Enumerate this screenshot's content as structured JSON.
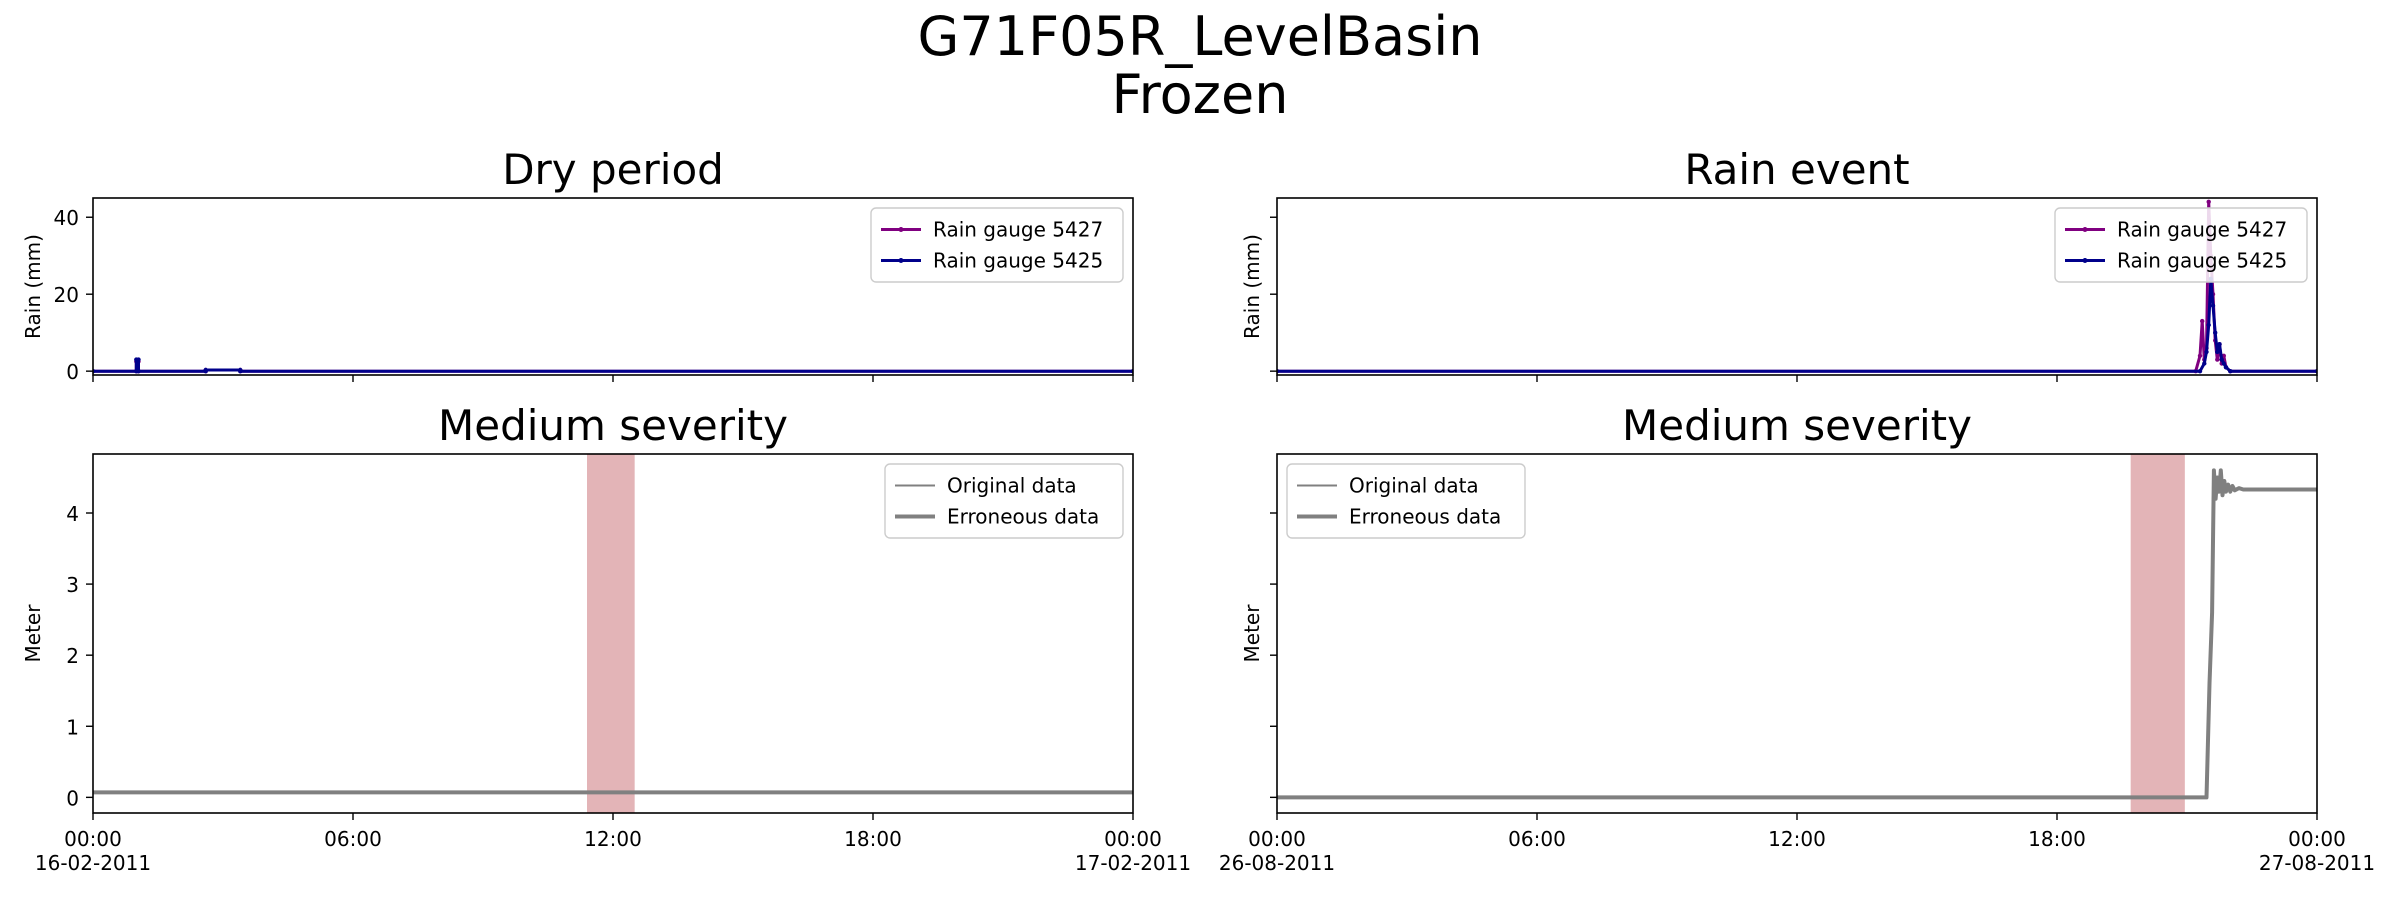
{
  "figure": {
    "title_line1": "G71F05R_LevelBasin",
    "title_line2": "Frozen"
  },
  "chart_data": [
    {
      "id": "rain_dry",
      "type": "line",
      "title": "Dry period",
      "ylabel": "Rain (mm)",
      "ylim": [
        -1,
        45
      ],
      "yticks": [
        0,
        20,
        40
      ],
      "show_ytick_labels": true,
      "xlim_hours": [
        0,
        24
      ],
      "xticks": [
        "00:00\n16-02-2011",
        "06:00",
        "12:00",
        "18:00",
        "00:00\n17-02-2011"
      ],
      "show_xtick_labels": false,
      "legend": "upper-right",
      "series": [
        {
          "name": "Rain gauge 5427",
          "color": "#800080",
          "marker": true,
          "x": [
            0,
            1.0,
            1.0,
            1.05,
            1.05,
            2.6,
            2.6,
            3.4,
            3.4,
            24
          ],
          "y": [
            0,
            0,
            2.5,
            2.5,
            0,
            0,
            0.3,
            0.3,
            0,
            0
          ]
        },
        {
          "name": "Rain gauge 5425",
          "color": "#00008b",
          "marker": true,
          "x": [
            0,
            1.0,
            1.0,
            1.05,
            1.05,
            2.6,
            2.6,
            3.4,
            3.4,
            24
          ],
          "y": [
            0,
            0,
            3.0,
            3.0,
            0,
            0,
            0.3,
            0.3,
            0,
            0
          ]
        }
      ]
    },
    {
      "id": "rain_event",
      "type": "line",
      "title": "Rain event",
      "ylabel": "Rain (mm)",
      "ylim": [
        -1,
        45
      ],
      "yticks": [
        0,
        20,
        40
      ],
      "show_ytick_labels": false,
      "xlim_hours": [
        0,
        24
      ],
      "xticks": [
        "00:00\n26-08-2011",
        "06:00",
        "12:00",
        "18:00",
        "00:00\n27-08-2011"
      ],
      "show_xtick_labels": false,
      "legend": "upper-right",
      "series": [
        {
          "name": "Rain gauge 5427",
          "color": "#800080",
          "marker": true,
          "x": [
            0,
            21.2,
            21.3,
            21.35,
            21.4,
            21.45,
            21.5,
            21.55,
            21.6,
            21.65,
            21.7,
            21.75,
            21.8,
            21.85,
            21.9,
            22.0,
            24
          ],
          "y": [
            0,
            0,
            4,
            13,
            3,
            6,
            44,
            30,
            20,
            8,
            3,
            7,
            2,
            4,
            1,
            0,
            0
          ]
        },
        {
          "name": "Rain gauge 5425",
          "color": "#00008b",
          "marker": true,
          "x": [
            0,
            21.3,
            21.4,
            21.45,
            21.5,
            21.55,
            21.6,
            21.65,
            21.7,
            21.75,
            21.8,
            21.85,
            21.9,
            22.0,
            24
          ],
          "y": [
            0,
            0,
            2,
            5,
            12,
            24,
            17,
            10,
            5,
            7,
            3,
            2,
            1,
            0,
            0
          ]
        }
      ]
    },
    {
      "id": "level_dry",
      "type": "line",
      "title": "Medium severity",
      "ylabel": "Meter",
      "ylim": [
        -0.22,
        4.83
      ],
      "yticks": [
        0,
        1,
        2,
        3,
        4
      ],
      "show_ytick_labels": true,
      "xlim_hours": [
        0,
        24
      ],
      "xticks": [
        "00:00\n16-02-2011",
        "06:00",
        "12:00",
        "18:00",
        "00:00\n17-02-2011"
      ],
      "show_xtick_labels": true,
      "legend": "upper-right",
      "highlight_span_hours": [
        11.4,
        12.5
      ],
      "series": [
        {
          "name": "Original data",
          "color": "#808080",
          "width": "thin",
          "x": [
            0,
            24
          ],
          "y": [
            0.07,
            0.07
          ]
        },
        {
          "name": "Erroneous data",
          "color": "#808080",
          "width": "thick",
          "x": [
            0,
            24
          ],
          "y": [
            0.07,
            0.07
          ]
        }
      ]
    },
    {
      "id": "level_event",
      "type": "line",
      "title": "Medium severity",
      "ylabel": "Meter",
      "ylim": [
        -0.22,
        4.83
      ],
      "yticks": [
        0,
        1,
        2,
        3,
        4
      ],
      "show_ytick_labels": false,
      "xlim_hours": [
        0,
        24
      ],
      "xticks": [
        "00:00\n26-08-2011",
        "06:00",
        "12:00",
        "18:00",
        "00:00\n27-08-2011"
      ],
      "show_xtick_labels": true,
      "legend": "upper-left",
      "highlight_span_hours": [
        19.7,
        20.95
      ],
      "series": [
        {
          "name": "Original data",
          "color": "#808080",
          "width": "thin",
          "x": [
            0,
            21.45,
            21.52,
            21.58,
            21.62,
            21.66,
            21.7,
            21.74,
            21.78,
            21.82,
            21.86,
            21.9,
            21.95,
            22.0,
            22.05,
            22.1,
            22.2,
            22.3,
            24
          ],
          "y": [
            0,
            0,
            1.6,
            2.6,
            4.6,
            4.2,
            4.5,
            4.3,
            4.6,
            4.25,
            4.45,
            4.3,
            4.4,
            4.3,
            4.38,
            4.32,
            4.35,
            4.33,
            4.33
          ]
        },
        {
          "name": "Erroneous data",
          "color": "#808080",
          "width": "thick",
          "x": [
            0,
            21.45,
            21.52,
            21.58,
            21.62,
            21.66,
            21.7,
            21.74,
            21.78,
            21.82,
            21.86,
            21.9,
            21.95,
            22.0,
            22.05,
            22.1,
            22.2,
            22.3,
            24
          ],
          "y": [
            0,
            0,
            1.6,
            2.6,
            4.6,
            4.2,
            4.5,
            4.3,
            4.6,
            4.25,
            4.45,
            4.3,
            4.4,
            4.3,
            4.38,
            4.32,
            4.35,
            4.33,
            4.33
          ]
        }
      ]
    }
  ]
}
